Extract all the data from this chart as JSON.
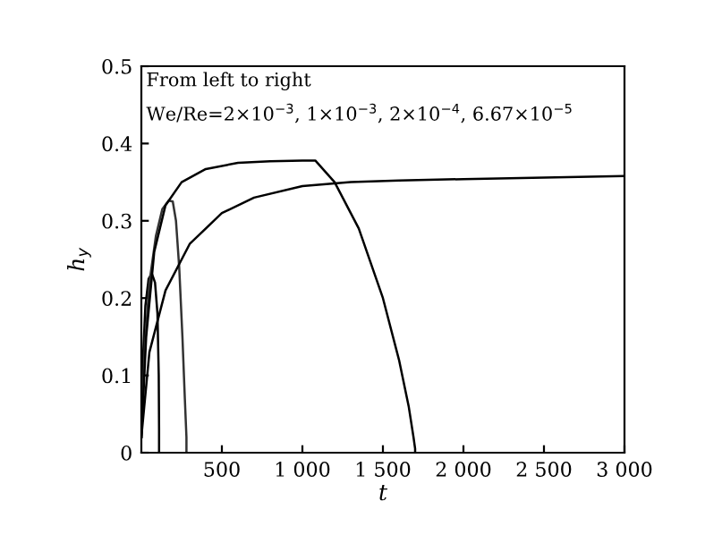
{
  "chart_data": {
    "type": "line",
    "xlabel": "t",
    "ylabel": "h$_{y}$",
    "annotations": [
      "From left to right",
      "We/Re=2×10$^{−3}$, 1×10$^{−3}$, 2×10$^{−4}$, 6.67×10$^{−5}$"
    ],
    "xlim": [
      0,
      3000
    ],
    "ylim": [
      0,
      0.5
    ],
    "xticks": [
      500,
      {
        "value": 1000,
        "label": "1 000"
      },
      {
        "value": 1500,
        "label": "1 500"
      },
      {
        "value": 2000,
        "label": "2 000"
      },
      {
        "value": 2500,
        "label": "2 500"
      },
      {
        "value": 3000,
        "label": "3 000"
      }
    ],
    "yticks": [
      0,
      0.1,
      0.2,
      0.3,
      0.4,
      0.5
    ],
    "grid": false,
    "legend": false,
    "series": [
      {
        "color": "#000000",
        "x": [
          0,
          10,
          25,
          45,
          65,
          85,
          100,
          108,
          110,
          110
        ],
        "values": [
          0.02,
          0.12,
          0.19,
          0.225,
          0.232,
          0.22,
          0.18,
          0.1,
          0.03,
          0
        ]
      },
      {
        "color": "#333333",
        "x": [
          0,
          20,
          50,
          90,
          130,
          170,
          195,
          215,
          235,
          255,
          270,
          280,
          280
        ],
        "values": [
          0.02,
          0.13,
          0.22,
          0.28,
          0.315,
          0.326,
          0.325,
          0.3,
          0.24,
          0.15,
          0.07,
          0.02,
          0
        ]
      },
      {
        "color": "#000000",
        "x": [
          0,
          30,
          80,
          150,
          250,
          400,
          600,
          800,
          1000,
          1080,
          1200,
          1350,
          1500,
          1600,
          1660,
          1690,
          1700,
          1700
        ],
        "values": [
          0.02,
          0.15,
          0.26,
          0.32,
          0.35,
          0.367,
          0.375,
          0.377,
          0.378,
          0.378,
          0.35,
          0.29,
          0.2,
          0.12,
          0.06,
          0.02,
          0.005,
          0
        ]
      },
      {
        "color": "#000000",
        "x": [
          0,
          50,
          150,
          300,
          500,
          700,
          1000,
          1300,
          1600,
          2000,
          2500,
          3000
        ],
        "values": [
          0.02,
          0.13,
          0.21,
          0.27,
          0.31,
          0.33,
          0.345,
          0.35,
          0.352,
          0.354,
          0.356,
          0.358
        ]
      }
    ]
  }
}
